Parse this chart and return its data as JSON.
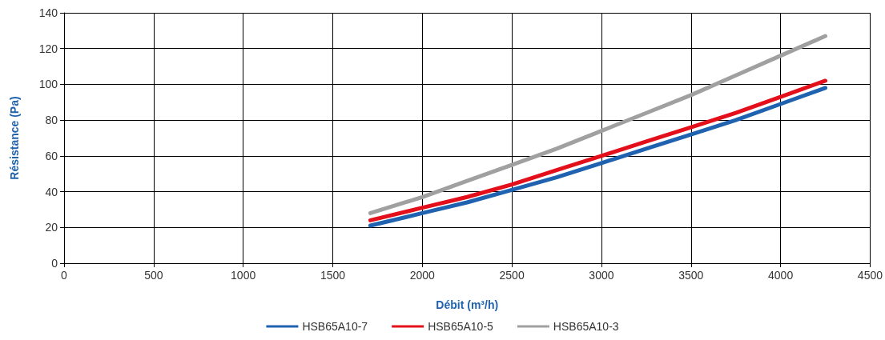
{
  "chart_data": {
    "type": "line",
    "xlabel": "Débit (m³/h)",
    "ylabel": "Résistance (Pa)",
    "xlim": [
      0,
      4500
    ],
    "xticks": [
      0,
      500,
      1000,
      1500,
      2000,
      2500,
      3000,
      3500,
      4000,
      4500
    ],
    "ylim": [
      0,
      140
    ],
    "yticks": [
      0,
      20,
      40,
      60,
      80,
      100,
      120,
      140
    ],
    "grid": true,
    "legend": "bottom",
    "marker": "none",
    "line_style": "solid",
    "series": [
      {
        "name": "HSB65A10-7",
        "color": "#1f63b0",
        "x": [
          1710,
          2000,
          2250,
          2500,
          2750,
          3000,
          3250,
          3500,
          3750,
          4000,
          4250
        ],
        "values": [
          21,
          28,
          34,
          41,
          48,
          56,
          64,
          72,
          80,
          89,
          98
        ]
      },
      {
        "name": "HSB65A10-5",
        "color": "#e3101b",
        "x": [
          1710,
          2000,
          2250,
          2500,
          2750,
          3000,
          3250,
          3500,
          3750,
          4000,
          4250
        ],
        "values": [
          24,
          31,
          37,
          44,
          52,
          60,
          68,
          76,
          84,
          93,
          102
        ]
      },
      {
        "name": "HSB65A10-3",
        "color": "#a0a0a0",
        "x": [
          1710,
          2000,
          2250,
          2500,
          2750,
          3000,
          3250,
          3500,
          3750,
          4000,
          4250
        ],
        "values": [
          28,
          37,
          46,
          55,
          64,
          74,
          84,
          94,
          105,
          116,
          127
        ]
      }
    ]
  }
}
